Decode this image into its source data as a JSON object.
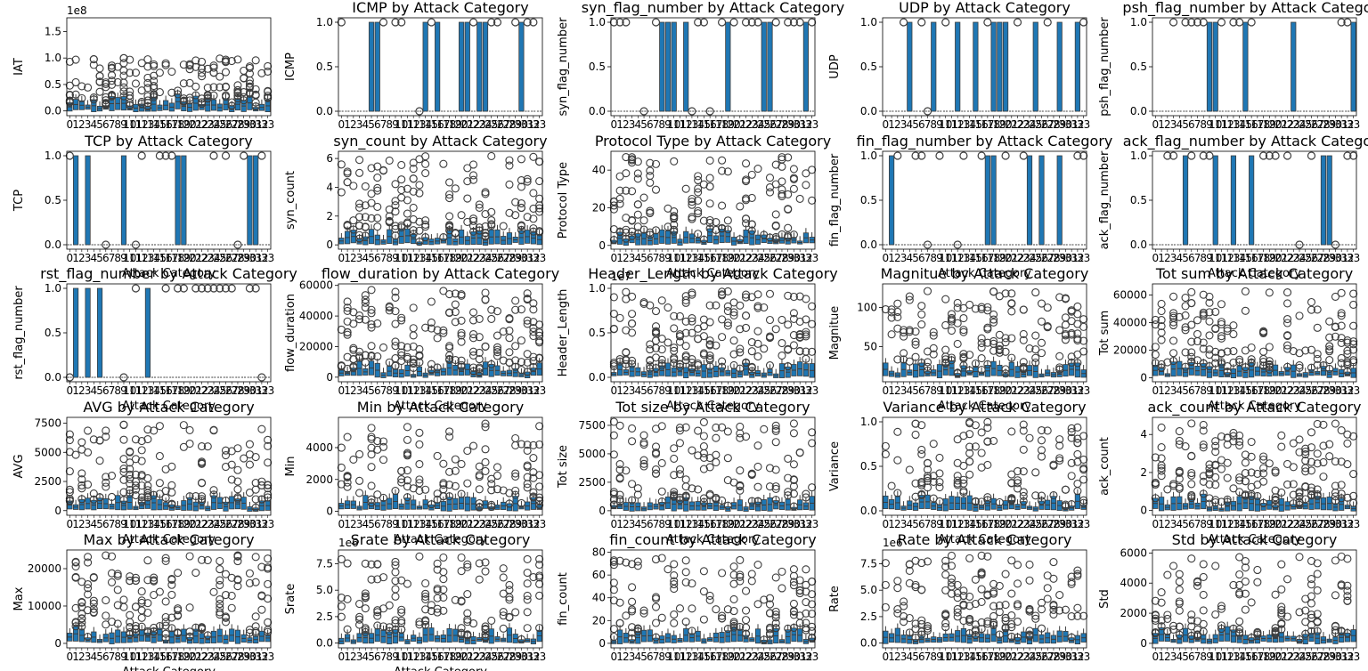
{
  "figure": {
    "common_xlabel": "Attack Category",
    "accent": "#1f77b4",
    "outlier": "#3d3d3d"
  },
  "chart_data": [
    {
      "type": "box",
      "title": "",
      "ylabel": "IAT",
      "xlabel": "",
      "exponent": "1e8",
      "ylim": [
        -0.09,
        1.76
      ],
      "yticks": [
        0.0,
        0.5,
        1.0,
        1.5
      ],
      "ytick_labels": [
        "0.0",
        "0.5",
        "1.0",
        "1.5"
      ],
      "outlier_max": 1.0,
      "max": 1.66
    },
    {
      "type": "box",
      "title": "ICMP by Attack Category",
      "ylabel": "ICMP",
      "xlabel": "",
      "ylim": [
        -0.05,
        1.05
      ],
      "yticks": [
        0.0,
        0.5,
        1.0
      ],
      "ytick_labels": [
        "0.0",
        "0.5",
        "1.0"
      ],
      "outlier_max": 1.0
    },
    {
      "type": "box",
      "title": "syn_flag_number by Attack Category",
      "ylabel": "syn_flag_number",
      "xlabel": "",
      "ylim": [
        -0.05,
        1.05
      ],
      "yticks": [
        0.0,
        0.5,
        1.0
      ],
      "ytick_labels": [
        "0.0",
        "0.5",
        "1.0"
      ],
      "outlier_max": 1.0
    },
    {
      "type": "box",
      "title": "UDP by Attack Category",
      "ylabel": "UDP",
      "xlabel": "",
      "ylim": [
        -0.05,
        1.05
      ],
      "yticks": [
        0.0,
        0.5,
        1.0
      ],
      "ytick_labels": [
        "0.0",
        "0.5",
        "1.0"
      ],
      "outlier_max": 1.0
    },
    {
      "type": "box",
      "title": "psh_flag_number by Attack Category",
      "ylabel": "psh_flag_number",
      "xlabel": "",
      "ylim": [
        -0.05,
        1.05
      ],
      "yticks": [
        0.0,
        0.5,
        1.0
      ],
      "ytick_labels": [
        "0.0",
        "0.5",
        "1.0"
      ],
      "outlier_max": 1.0
    },
    {
      "type": "box",
      "title": "TCP by Attack Category",
      "ylabel": "TCP",
      "xlabel": "Attack Category",
      "ylim": [
        -0.05,
        1.05
      ],
      "yticks": [
        0.0,
        0.5,
        1.0
      ],
      "ytick_labels": [
        "0.0",
        "0.5",
        "1.0"
      ],
      "outlier_max": 1.0
    },
    {
      "type": "box",
      "title": "syn_count by Attack Category",
      "ylabel": "syn_count",
      "xlabel": "",
      "ylim": [
        -0.3,
        6.5
      ],
      "yticks": [
        0,
        2,
        4,
        6
      ],
      "ytick_labels": [
        "0",
        "2",
        "4",
        "6"
      ],
      "outlier_max": 6.2
    },
    {
      "type": "box",
      "title": "Protocol Type by Attack Category",
      "ylabel": "Protocol Type",
      "xlabel": "Attack Category",
      "ylim": [
        -2,
        50
      ],
      "yticks": [
        0,
        20,
        40
      ],
      "ytick_labels": [
        "0",
        "20",
        "40"
      ],
      "outlier_max": 47
    },
    {
      "type": "box",
      "title": "fin_flag_number by Attack Category",
      "ylabel": "fin_flag_number",
      "xlabel": "Attack Category",
      "ylim": [
        -0.05,
        1.05
      ],
      "yticks": [
        0.0,
        0.5,
        1.0
      ],
      "ytick_labels": [
        "0.0",
        "0.5",
        "1.0"
      ],
      "outlier_max": 1.0
    },
    {
      "type": "box",
      "title": "ack_flag_number by Attack Category",
      "ylabel": "ack_flag_number",
      "xlabel": "Attack Category",
      "ylim": [
        -0.05,
        1.05
      ],
      "yticks": [
        0.0,
        0.5,
        1.0
      ],
      "ytick_labels": [
        "0.0",
        "0.5",
        "1.0"
      ],
      "outlier_max": 1.0
    },
    {
      "type": "box",
      "title": "rst_flag_number by Attack Category",
      "ylabel": "rst_flag_number",
      "xlabel": "Attack Category",
      "ylim": [
        -0.05,
        1.05
      ],
      "yticks": [
        0.0,
        0.5,
        1.0
      ],
      "ytick_labels": [
        "0.0",
        "0.5",
        "1.0"
      ],
      "outlier_max": 1.0
    },
    {
      "type": "box",
      "title": "flow_duration by Attack Category",
      "ylabel": "flow_duration",
      "xlabel": "Attack Category",
      "ylim": [
        -3000,
        61000
      ],
      "yticks": [
        0,
        20000,
        40000,
        60000
      ],
      "ytick_labels": [
        "0",
        "20000",
        "40000",
        "60000"
      ],
      "outlier_max": 58000
    },
    {
      "type": "box",
      "title": "Header_Length by Attack Category",
      "ylabel": "Header_Length",
      "xlabel": "Attack Category",
      "exponent": "1e7",
      "ylim": [
        -0.05,
        1.05
      ],
      "yticks": [
        0.0,
        0.5,
        1.0
      ],
      "ytick_labels": [
        "0.0",
        "0.5",
        "1.0"
      ],
      "outlier_max": 0.97
    },
    {
      "type": "box",
      "title": "Magnitue by Attack Category",
      "ylabel": "Magnitue",
      "xlabel": "Attack Category",
      "ylim": [
        5,
        130
      ],
      "yticks": [
        50,
        100
      ],
      "ytick_labels": [
        "50",
        "100"
      ],
      "outlier_max": 122
    },
    {
      "type": "box",
      "title": "Tot sum by Attack Category",
      "ylabel": "Tot sum",
      "xlabel": "Attack Category",
      "ylim": [
        -3000,
        68000
      ],
      "yticks": [
        0,
        20000,
        40000,
        60000
      ],
      "ytick_labels": [
        "0",
        "20000",
        "40000",
        "60000"
      ],
      "outlier_max": 63000
    },
    {
      "type": "box",
      "title": "AVG by Attack Category",
      "ylabel": "AVG",
      "xlabel": "Attack Category",
      "ylim": [
        -400,
        8000
      ],
      "yticks": [
        0,
        2500,
        5000,
        7500
      ],
      "ytick_labels": [
        "0",
        "2500",
        "5000",
        "7500"
      ],
      "outlier_max": 7400
    },
    {
      "type": "box",
      "title": "Min by Attack Category",
      "ylabel": "Min",
      "xlabel": "Attack Category",
      "ylim": [
        -250,
        5900
      ],
      "yticks": [
        0,
        2000,
        4000
      ],
      "ytick_labels": [
        "0",
        "2000",
        "4000"
      ],
      "outlier_max": 5600
    },
    {
      "type": "box",
      "title": "Tot size by Attack Category",
      "ylabel": "Tot size",
      "xlabel": "Attack Category",
      "ylim": [
        -400,
        8200
      ],
      "yticks": [
        0,
        2500,
        5000,
        7500
      ],
      "ytick_labels": [
        "0",
        "2500",
        "5000",
        "7500"
      ],
      "outlier_max": 7900
    },
    {
      "type": "box",
      "title": "Variance by Attack Category",
      "ylabel": "Variance",
      "xlabel": "Attack Category",
      "ylim": [
        -0.05,
        1.05
      ],
      "yticks": [
        0.0,
        0.5,
        1.0
      ],
      "ytick_labels": [
        "0.0",
        "0.5",
        "1.0"
      ],
      "outlier_max": 1.0
    },
    {
      "type": "box",
      "title": "ack_count by Attack Category",
      "ylabel": "ack_count",
      "xlabel": "Attack Category",
      "ylim": [
        -0.25,
        4.9
      ],
      "yticks": [
        0,
        2,
        4
      ],
      "ytick_labels": [
        "0",
        "2",
        "4"
      ],
      "outlier_max": 4.6
    },
    {
      "type": "box",
      "title": "Max by Attack Category",
      "ylabel": "Max",
      "xlabel": "Attack Category",
      "ylim": [
        -1200,
        25000
      ],
      "yticks": [
        0,
        10000,
        20000
      ],
      "ytick_labels": [
        "0",
        "10000",
        "20000"
      ],
      "outlier_max": 24000
    },
    {
      "type": "box",
      "title": "Srate by Attack Category",
      "ylabel": "Srate",
      "xlabel": "Attack Category",
      "exponent": "1e6",
      "ylim": [
        -0.45,
        8.8
      ],
      "yticks": [
        0.0,
        2.5,
        5.0,
        7.5
      ],
      "ytick_labels": [
        "0.0",
        "2.5",
        "5.0",
        "7.5"
      ],
      "outlier_max": 8.3
    },
    {
      "type": "box",
      "title": "fin_count by Attack Category",
      "ylabel": "fin_count",
      "xlabel": "",
      "ylim": [
        -4,
        82
      ],
      "yticks": [
        0,
        20,
        40,
        60,
        80
      ],
      "ytick_labels": [
        "0",
        "20",
        "40",
        "60",
        "80"
      ],
      "outlier_max": 78
    },
    {
      "type": "box",
      "title": "Rate by Attack Category",
      "ylabel": "Rate",
      "xlabel": "",
      "exponent": "1e6",
      "ylim": [
        -0.45,
        8.8
      ],
      "yticks": [
        0.0,
        2.5,
        5.0,
        7.5
      ],
      "ytick_labels": [
        "0.0",
        "2.5",
        "5.0",
        "7.5"
      ],
      "outlier_max": 8.3
    },
    {
      "type": "box",
      "title": "Std by Attack Category",
      "ylabel": "Std",
      "xlabel": "",
      "ylim": [
        -300,
        6200
      ],
      "yticks": [
        0,
        2000,
        4000,
        6000
      ],
      "ytick_labels": [
        "0",
        "2000",
        "4000",
        "6000"
      ],
      "outlier_max": 5800
    }
  ]
}
